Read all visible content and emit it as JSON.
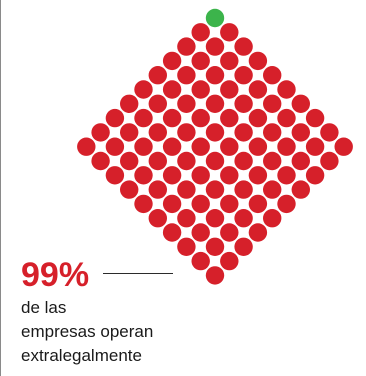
{
  "infographic": {
    "percentage_label": "99%",
    "caption_lines": [
      "de las",
      "empresas operan",
      "extralegalmente"
    ],
    "dot_total": 100,
    "highlighted_count": 1,
    "highlighted_fraction": 0.01,
    "colors": {
      "majority_dot": "#d6202a",
      "highlight_dot": "#3cb44b",
      "percentage_text": "#d6202a",
      "caption_text": "#1a1a1a"
    }
  }
}
